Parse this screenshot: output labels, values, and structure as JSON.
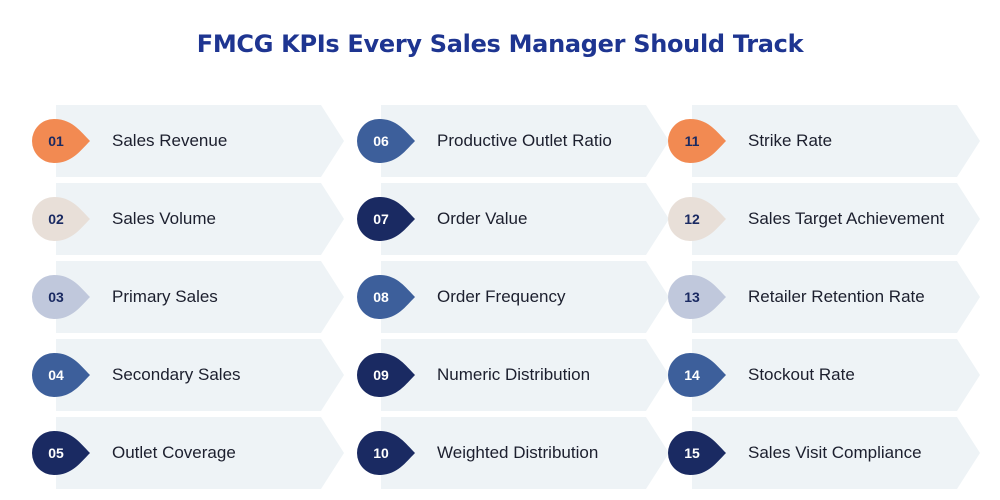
{
  "title": "FMCG KPIs Every Sales Manager Should Track",
  "colors": {
    "orange": "#f28a52",
    "beige": "#e8dfd8",
    "lavender": "#c0c8dc",
    "steel": "#3d5f9b",
    "navy": "#1a2a62",
    "card": "#eef3f6"
  },
  "columns": [
    {
      "items": [
        {
          "num": "01",
          "label": "Sales Revenue",
          "color": "#f28a52",
          "text": "#1a2a62"
        },
        {
          "num": "02",
          "label": "Sales Volume",
          "color": "#e8dfd8",
          "text": "#1a2a62"
        },
        {
          "num": "03",
          "label": "Primary Sales",
          "color": "#c0c8dc",
          "text": "#1a2a62"
        },
        {
          "num": "04",
          "label": "Secondary Sales",
          "color": "#3d5f9b",
          "text": "#ffffff"
        },
        {
          "num": "05",
          "label": "Outlet Coverage",
          "color": "#1a2a62",
          "text": "#ffffff"
        }
      ]
    },
    {
      "items": [
        {
          "num": "06",
          "label": "Productive Outlet Ratio",
          "color": "#3d5f9b",
          "text": "#ffffff"
        },
        {
          "num": "07",
          "label": "Order Value",
          "color": "#1a2a62",
          "text": "#ffffff"
        },
        {
          "num": "08",
          "label": "Order Frequency",
          "color": "#3d5f9b",
          "text": "#ffffff"
        },
        {
          "num": "09",
          "label": "Numeric Distribution",
          "color": "#1a2a62",
          "text": "#ffffff"
        },
        {
          "num": "10",
          "label": "Weighted Distribution",
          "color": "#1a2a62",
          "text": "#ffffff"
        }
      ]
    },
    {
      "items": [
        {
          "num": "11",
          "label": "Strike Rate",
          "color": "#f28a52",
          "text": "#1a2a62"
        },
        {
          "num": "12",
          "label": "Sales Target Achievement",
          "color": "#e8dfd8",
          "text": "#1a2a62"
        },
        {
          "num": "13",
          "label": "Retailer Retention Rate",
          "color": "#c0c8dc",
          "text": "#1a2a62"
        },
        {
          "num": "14",
          "label": "Stockout Rate",
          "color": "#3d5f9b",
          "text": "#ffffff"
        },
        {
          "num": "15",
          "label": "Sales Visit Compliance",
          "color": "#1a2a62",
          "text": "#ffffff"
        }
      ]
    }
  ]
}
